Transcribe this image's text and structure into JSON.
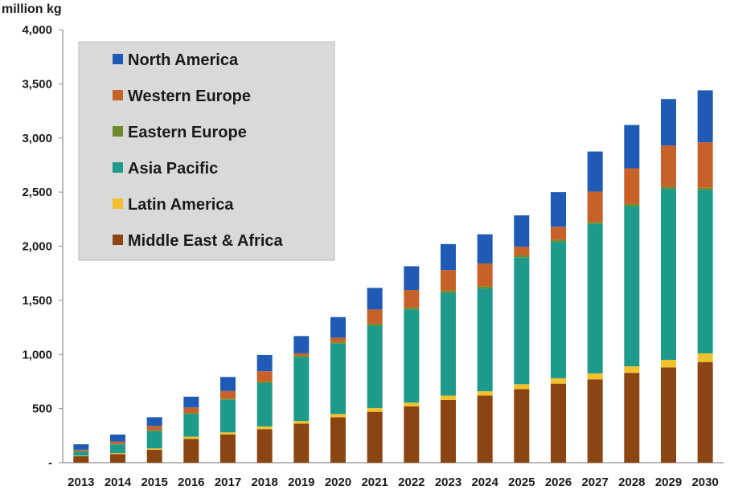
{
  "chart_data": {
    "type": "bar",
    "stacked": true,
    "unit_label": "million kg",
    "y_ticks": [
      "-",
      "500",
      "1,000",
      "1,500",
      "2,000",
      "2,500",
      "3,000",
      "3,500",
      "4,000"
    ],
    "ylim": [
      0,
      4000
    ],
    "grid": false,
    "legend_position": "top-left",
    "categories": [
      "2013",
      "2014",
      "2015",
      "2016",
      "2017",
      "2018",
      "2019",
      "2020",
      "2021",
      "2022",
      "2023",
      "2024",
      "2025",
      "2026",
      "2027",
      "2028",
      "2029",
      "2030"
    ],
    "series": [
      {
        "name": "Middle East & Africa",
        "color": "#8b4513",
        "values": [
          60,
          80,
          120,
          220,
          260,
          310,
          360,
          420,
          470,
          520,
          580,
          620,
          680,
          730,
          770,
          830,
          880,
          930
        ]
      },
      {
        "name": "Latin America",
        "color": "#f2c22e",
        "values": [
          5,
          8,
          12,
          20,
          20,
          25,
          25,
          30,
          35,
          35,
          40,
          40,
          45,
          50,
          55,
          60,
          70,
          80
        ]
      },
      {
        "name": "Asia Pacific",
        "color": "#1e9a8a",
        "values": [
          40,
          80,
          160,
          210,
          300,
          400,
          590,
          650,
          760,
          860,
          950,
          950,
          1170,
          1260,
          1380,
          1480,
          1580,
          1510
        ]
      },
      {
        "name": "Eastern Europe",
        "color": "#6e8c2a",
        "values": [
          3,
          5,
          8,
          10,
          12,
          15,
          15,
          15,
          20,
          20,
          20,
          20,
          20,
          20,
          20,
          20,
          20,
          20
        ]
      },
      {
        "name": "Western Europe",
        "color": "#c8602a",
        "values": [
          12,
          22,
          40,
          50,
          70,
          95,
          20,
          40,
          130,
          160,
          190,
          210,
          80,
          120,
          280,
          330,
          380,
          420
        ]
      },
      {
        "name": "North America",
        "color": "#1f5bb5",
        "values": [
          50,
          65,
          80,
          100,
          130,
          150,
          160,
          190,
          200,
          220,
          240,
          270,
          290,
          320,
          370,
          400,
          430,
          480
        ]
      }
    ],
    "legend_order": [
      "North America",
      "Western Europe",
      "Eastern Europe",
      "Asia Pacific",
      "Latin America",
      "Middle East & Africa"
    ]
  }
}
